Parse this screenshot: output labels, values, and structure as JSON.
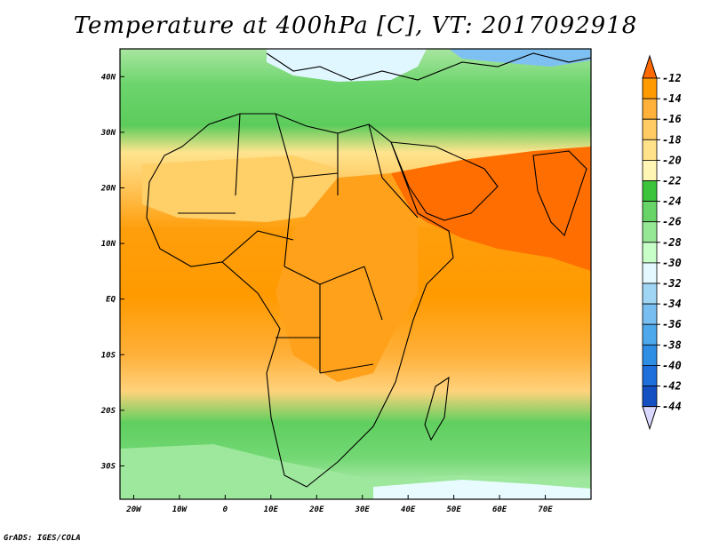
{
  "title": "Temperature at 400hPa [C], VT: 2017092918",
  "credit": "GrADS: IGES/COLA",
  "map": {
    "lon_range": [
      -23,
      80
    ],
    "lat_range": [
      -36,
      45
    ],
    "lat_ticks": [
      {
        "value": 40,
        "label": "40N"
      },
      {
        "value": 30,
        "label": "30N"
      },
      {
        "value": 20,
        "label": "20N"
      },
      {
        "value": 10,
        "label": "10N"
      },
      {
        "value": 0,
        "label": "EQ"
      },
      {
        "value": -10,
        "label": "10S"
      },
      {
        "value": -20,
        "label": "20S"
      },
      {
        "value": -30,
        "label": "30S"
      }
    ],
    "lon_ticks": [
      {
        "value": -20,
        "label": "20W"
      },
      {
        "value": -10,
        "label": "10W"
      },
      {
        "value": 0,
        "label": "0"
      },
      {
        "value": 10,
        "label": "10E"
      },
      {
        "value": 20,
        "label": "20E"
      },
      {
        "value": 30,
        "label": "30E"
      },
      {
        "value": 40,
        "label": "40E"
      },
      {
        "value": 50,
        "label": "50E"
      },
      {
        "value": 60,
        "label": "60E"
      },
      {
        "value": 70,
        "label": "70E"
      }
    ]
  },
  "colorbar": {
    "labels": [
      "-12",
      "-14",
      "-16",
      "-18",
      "-20",
      "-22",
      "-24",
      "-26",
      "-28",
      "-30",
      "-32",
      "-34",
      "-36",
      "-38",
      "-40",
      "-42",
      "-44"
    ],
    "colors": [
      "#ff6a00",
      "#ff9a00",
      "#ffb13a",
      "#ffcb62",
      "#ffe28a",
      "#fff5b4",
      "#3cc43c",
      "#66d466",
      "#96e896",
      "#c8ffc8",
      "#e4f8ff",
      "#a0d6f4",
      "#78bef0",
      "#4ea8ec",
      "#2e8ee4",
      "#1e6edc",
      "#1450c2",
      "#0c2c9a",
      "#080a6a",
      "#d8d8ff"
    ]
  }
}
